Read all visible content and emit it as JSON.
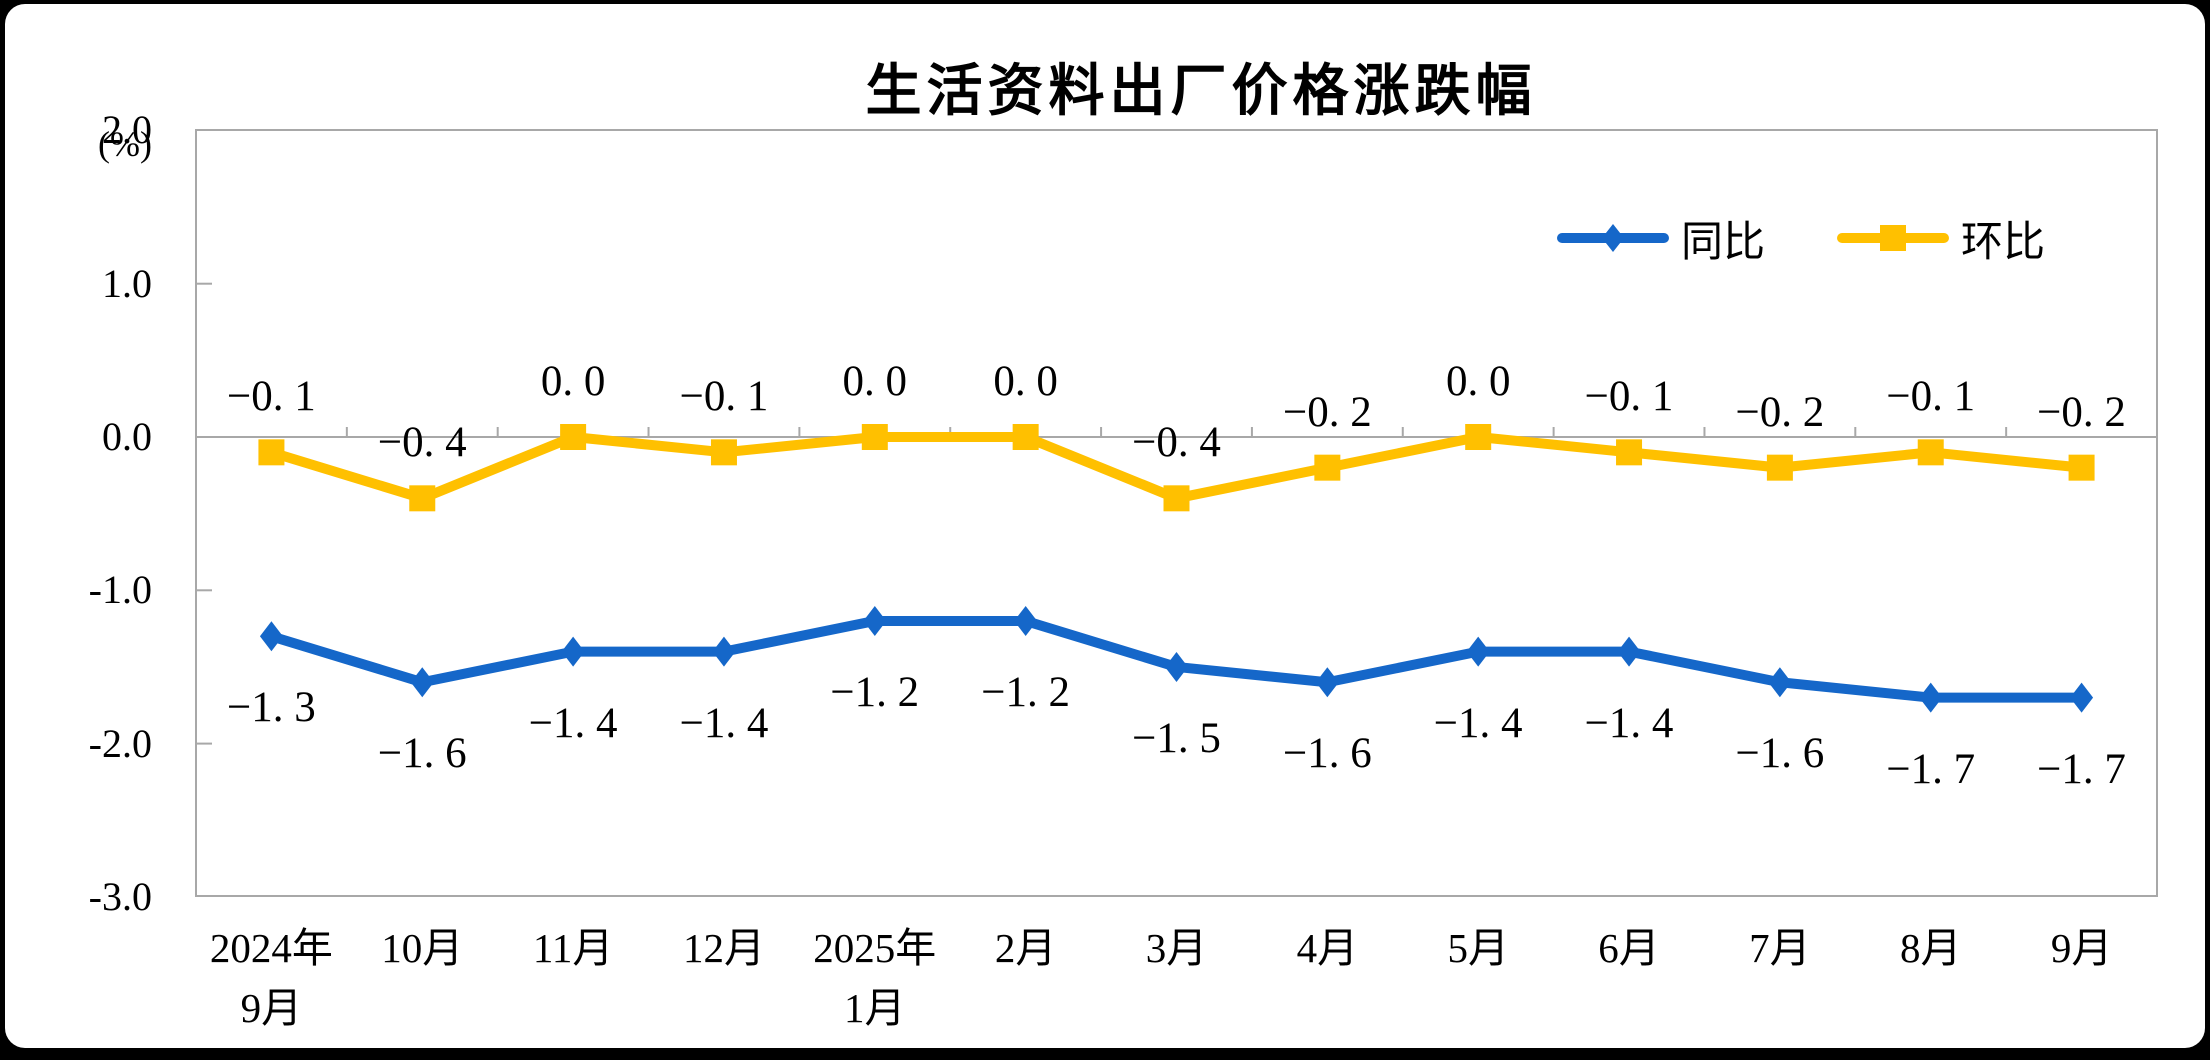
{
  "window": {
    "frame_color": "#000000",
    "background_color": "#ffffff"
  },
  "chart_data": {
    "type": "line",
    "title": "生活资料出厂价格涨跌幅",
    "unit_label": "(%)",
    "categories": [
      "2024年\n9月",
      "10月",
      "11月",
      "12月",
      "2025年\n1月",
      "2月",
      "3月",
      "4月",
      "5月",
      "6月",
      "7月",
      "8月",
      "9月"
    ],
    "y_ticks": [
      {
        "label": "2.0",
        "value": 2.0
      },
      {
        "label": "1.0",
        "value": 1.0
      },
      {
        "label": "0.0",
        "value": 0.0
      },
      {
        "label": "-1.0",
        "value": -1.0
      },
      {
        "label": "-2.0",
        "value": -2.0
      },
      {
        "label": "-3.0",
        "value": -3.0
      }
    ],
    "ylim": [
      -3.0,
      2.0
    ],
    "grid": "zero-baseline-only",
    "legend_position": "top-right-inside",
    "axis_color": "#A8A8A8",
    "text_color": "#000000",
    "series": [
      {
        "name": "同比",
        "color": "#1567C9",
        "marker": "diamond",
        "label_position": "below",
        "values": [
          -1.3,
          -1.6,
          -1.4,
          -1.4,
          -1.2,
          -1.2,
          -1.5,
          -1.6,
          -1.4,
          -1.4,
          -1.6,
          -1.7,
          -1.7
        ]
      },
      {
        "name": "环比",
        "color": "#FFC000",
        "marker": "square",
        "label_position": "above",
        "values": [
          -0.1,
          -0.4,
          0.0,
          -0.1,
          0.0,
          0.0,
          -0.4,
          -0.2,
          0.0,
          -0.1,
          -0.2,
          -0.1,
          -0.2
        ]
      }
    ]
  }
}
